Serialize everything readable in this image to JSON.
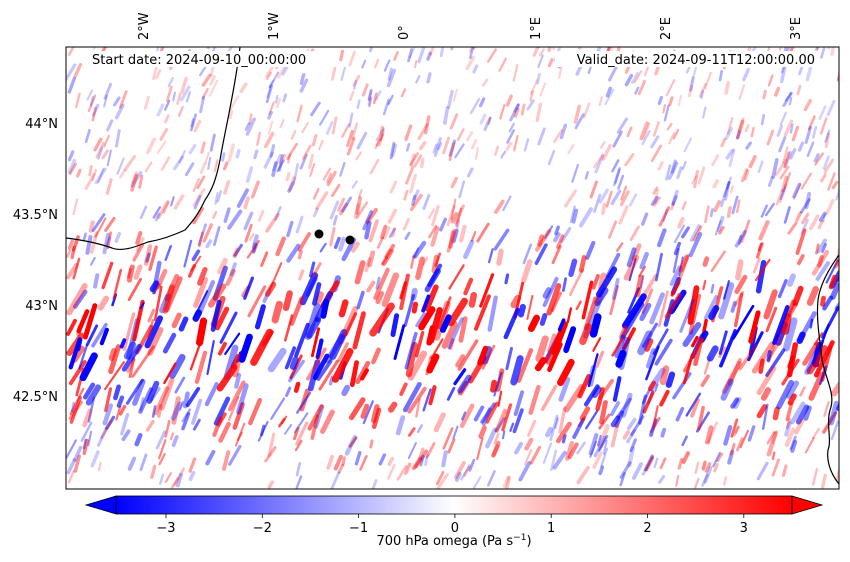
{
  "header": {
    "start_date": "Start date: 2024-09-10_00:00:00",
    "valid_date": "Valid_date: 2024-09-11T12:00:00.00"
  },
  "map": {
    "lon_labels": [
      "2°W",
      "1°W",
      "0°",
      "1°E",
      "2°E",
      "3°E"
    ],
    "lat_labels": [
      "44°N",
      "43.5°N",
      "43°N",
      "42.5°N"
    ],
    "point_markers": 2
  },
  "colorbar": {
    "ticks": [
      "−3",
      "−2",
      "−1",
      "0",
      "1",
      "2",
      "3"
    ],
    "label": "700 hPa omega (Pa s",
    "label_sup": "−1",
    "label_end": ")",
    "colormap": "bwr",
    "color_low": "#0000ff",
    "color_mid": "#ffffff",
    "color_high": "#ff0000"
  }
}
